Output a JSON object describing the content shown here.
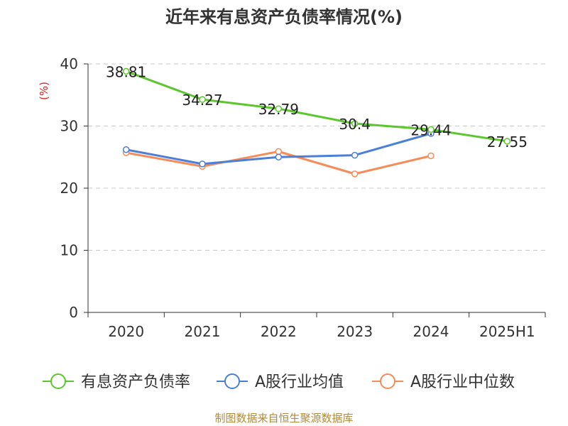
{
  "title": "近年来有息资产负债率情况(%)",
  "footer": "制图数据来自恒生聚源数据库",
  "colors": {
    "debt": "#5cc72c",
    "avg": "#4c7fd8",
    "median": "#f58c5a",
    "unit": "#e02020"
  },
  "chart_data": {
    "type": "line",
    "title": "近年来有息资产负债率情况(%)",
    "ylabel": "(%)",
    "xlabel": "",
    "ylim": [
      0,
      40
    ],
    "yticks": [
      0,
      10,
      20,
      30,
      40
    ],
    "categories": [
      "2020",
      "2021",
      "2022",
      "2023",
      "2024",
      "2025H1"
    ],
    "series": [
      {
        "name": "有息资产负债率",
        "values": [
          38.81,
          34.27,
          32.79,
          30.4,
          29.44,
          27.55
        ],
        "labels": [
          "38.81",
          "34.27",
          "32.79",
          "30.4",
          "29.44",
          "27.55"
        ]
      },
      {
        "name": "A股行业均值",
        "values": [
          26.2,
          23.9,
          25.0,
          25.3,
          28.8,
          null
        ]
      },
      {
        "name": "A股行业中位数",
        "values": [
          25.7,
          23.5,
          25.9,
          22.3,
          25.2,
          null
        ]
      }
    ],
    "legend_position": "bottom",
    "grid": true
  }
}
